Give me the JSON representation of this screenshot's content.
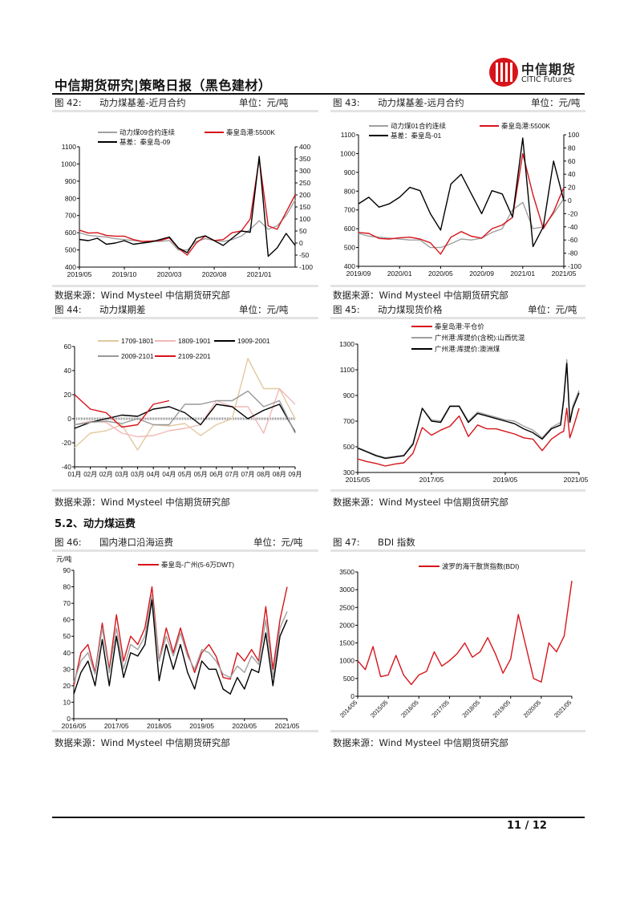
{
  "header": {
    "title": "中信期货研究|策略日报（黑色建材）",
    "logo_cn": "中信期货",
    "logo_en": "CITIC Futures"
  },
  "figures": [
    {
      "label": "图 42:",
      "title": "动力煤基差-近月合约",
      "unit": "单位：元/吨",
      "source": "数据来源：Wind Mysteel 中信期货研究部"
    },
    {
      "label": "图 43:",
      "title": "动力煤基差-远月合约",
      "unit": "单位：元/吨",
      "source": "数据来源：Wind Mysteel 中信期货研究部"
    },
    {
      "label": "图 44:",
      "title": "动力煤期差",
      "unit": "单位：元/吨",
      "source": "数据来源：Wind Mysteel 中信期货研究部"
    },
    {
      "label": "图 45:",
      "title": "动力煤现货价格",
      "unit": "单位：元/吨",
      "source": "数据来源：Wind Mysteel 中信期货研究部"
    },
    {
      "label": "图 46:",
      "title": "国内港口沿海运费",
      "unit": "单位：元/吨",
      "source": "数据来源：Wind Mysteel 中信期货研究部"
    },
    {
      "label": "图 47:",
      "title": "BDI 指数",
      "unit": "",
      "source": "数据来源：Wind Mysteel 中信期货研究部"
    }
  ],
  "section": {
    "title": "5.2、动力煤运费"
  },
  "footer": {
    "page": "11 / 12"
  },
  "colors": {
    "red": "#d7141a",
    "gray": "#a0a0a0",
    "black": "#000000",
    "tan": "#e2c9a0",
    "pink": "#f2b8b8",
    "darkgray": "#999999"
  },
  "chart_data": [
    {
      "type": "line",
      "x_type": "date",
      "xlim": [
        "2019/05",
        "2021/05"
      ],
      "xticks": [
        "2019/05",
        "2019/10",
        "2020/03",
        "2020/08",
        "2021/01"
      ],
      "ylim": [
        400,
        1100
      ],
      "yticks": [
        400,
        500,
        600,
        700,
        800,
        900,
        1000,
        1100
      ],
      "y2lim": [
        -100,
        400
      ],
      "y2ticks": [
        "-100",
        "-50",
        "0",
        "50",
        "100",
        "150",
        "200",
        "250",
        "300",
        "350",
        "400"
      ],
      "x": [
        "2019/05",
        "2019/06",
        "2019/07",
        "2019/08",
        "2019/09",
        "2019/10",
        "2019/11",
        "2019/12",
        "2020/01",
        "2020/02",
        "2020/03",
        "2020/04",
        "2020/05",
        "2020/06",
        "2020/07",
        "2020/08",
        "2020/09",
        "2020/10",
        "2020/11",
        "2020/12",
        "2021/01",
        "2021/02",
        "2021/03",
        "2021/04",
        "2021/05"
      ],
      "series": [
        {
          "name": "动力煤09合约连续",
          "color": "#a0a0a0",
          "axis": "left",
          "values": [
            600,
            585,
            580,
            575,
            565,
            560,
            555,
            548,
            548,
            550,
            555,
            500,
            500,
            550,
            565,
            555,
            550,
            560,
            580,
            620,
            670,
            620,
            640,
            700,
            790
          ]
        },
        {
          "name": "秦皇岛港:5500K",
          "color": "#d7141a",
          "axis": "left",
          "values": [
            615,
            598,
            600,
            585,
            580,
            580,
            560,
            550,
            552,
            555,
            570,
            510,
            470,
            540,
            580,
            555,
            560,
            600,
            610,
            680,
            1030,
            640,
            620,
            720,
            820
          ]
        },
        {
          "name": "基差：秦皇岛-09",
          "color": "#000000",
          "axis": "right",
          "values": [
            15,
            10,
            20,
            -5,
            0,
            10,
            -5,
            0,
            5,
            15,
            25,
            -20,
            -40,
            20,
            30,
            10,
            -10,
            20,
            50,
            45,
            360,
            -55,
            -20,
            40,
            -10
          ]
        }
      ]
    },
    {
      "type": "line",
      "x_type": "date",
      "xlim": [
        "2019/09",
        "2021/05"
      ],
      "xticks": [
        "2019/09",
        "2020/01",
        "2020/05",
        "2020/09",
        "2021/01",
        "2021/05"
      ],
      "ylim": [
        400,
        1100
      ],
      "yticks": [
        400,
        500,
        600,
        700,
        800,
        900,
        1000,
        1100
      ],
      "y2lim": [
        -100,
        100
      ],
      "y2ticks": [
        "-100",
        "-80",
        "-60",
        "-40",
        "-20",
        "0",
        "20",
        "40",
        "60",
        "80",
        "100"
      ],
      "x": [
        "2019/09",
        "2019/10",
        "2019/11",
        "2019/12",
        "2020/01",
        "2020/02",
        "2020/03",
        "2020/04",
        "2020/05",
        "2020/06",
        "2020/07",
        "2020/08",
        "2020/09",
        "2020/10",
        "2020/11",
        "2020/12",
        "2021/01",
        "2021/02",
        "2021/03",
        "2021/04",
        "2021/05"
      ],
      "series": [
        {
          "name": "动力煤01合约连续",
          "color": "#a0a0a0",
          "axis": "left",
          "values": [
            575,
            560,
            555,
            550,
            545,
            540,
            540,
            500,
            500,
            520,
            545,
            540,
            550,
            580,
            600,
            700,
            740,
            600,
            610,
            680,
            760
          ]
        },
        {
          "name": "秦皇岛港:5500K",
          "color": "#d7141a",
          "axis": "left",
          "values": [
            580,
            575,
            548,
            545,
            552,
            555,
            545,
            525,
            465,
            555,
            585,
            560,
            550,
            600,
            620,
            660,
            1000,
            780,
            600,
            690,
            820
          ]
        },
        {
          "name": "基差：秦皇岛-01",
          "color": "#000000",
          "axis": "right",
          "values": [
            -5,
            5,
            -10,
            -5,
            5,
            20,
            15,
            -20,
            -45,
            25,
            40,
            10,
            -20,
            15,
            10,
            -25,
            95,
            -70,
            -40,
            60,
            0
          ]
        }
      ]
    },
    {
      "type": "line",
      "x_type": "category",
      "xticks": [
        "01月",
        "02月",
        "02月",
        "03月",
        "03月",
        "04月",
        "04月",
        "05月",
        "05月",
        "06月",
        "07月",
        "07月",
        "08月",
        "08月",
        "09月"
      ],
      "ylim": [
        -40,
        60
      ],
      "yticks": [
        -40,
        -20,
        0,
        20,
        40,
        60
      ],
      "series": [
        {
          "name": "1709-1801",
          "color": "#e2c9a0",
          "values": [
            -24,
            -12,
            -10,
            -5,
            -26,
            -5,
            -6,
            -4,
            -14,
            -5,
            0,
            50,
            25,
            25,
            0
          ]
        },
        {
          "name": "1809-1901",
          "color": "#f2b8b8",
          "values": [
            -5,
            -2,
            -3,
            -12,
            -15,
            -14,
            -10,
            -8,
            -5,
            15,
            10,
            10,
            -12,
            25,
            12
          ]
        },
        {
          "name": "1909-2001",
          "color": "#000000",
          "values": [
            -8,
            -3,
            0,
            3,
            2,
            8,
            10,
            5,
            -5,
            12,
            10,
            0,
            7,
            12,
            -11
          ]
        },
        {
          "name": "2009-2101",
          "color": "#999999",
          "values": [
            -5,
            -3,
            -2,
            -4,
            0,
            -5,
            -5,
            12,
            12,
            15,
            15,
            23,
            10,
            15,
            -12
          ]
        },
        {
          "name": "2109-2201",
          "color": "#d7141a",
          "values": [
            20,
            8,
            5,
            -7,
            -5,
            12,
            15,
            null,
            null,
            null,
            null,
            null,
            null,
            null,
            null
          ]
        }
      ]
    },
    {
      "type": "line",
      "x_type": "date",
      "xlim": [
        "2015/05",
        "2021/05"
      ],
      "xticks": [
        "2015/05",
        "2017/05",
        "2019/05",
        "2021/05"
      ],
      "ylim": [
        300,
        1300
      ],
      "yticks": [
        300,
        500,
        700,
        900,
        1100,
        1300
      ],
      "x": [
        "2015/05",
        "2015/08",
        "2015/11",
        "2016/02",
        "2016/05",
        "2016/08",
        "2016/11",
        "2017/02",
        "2017/05",
        "2017/08",
        "2017/11",
        "2018/02",
        "2018/05",
        "2018/08",
        "2018/11",
        "2019/02",
        "2019/05",
        "2019/08",
        "2019/11",
        "2020/02",
        "2020/05",
        "2020/08",
        "2020/11",
        "2020/12",
        "2021/01",
        "2021/02",
        "2021/03",
        "2021/05"
      ],
      "series": [
        {
          "name": "秦皇岛港:平仓价",
          "color": "#d7141a",
          "values": [
            405,
            385,
            370,
            350,
            365,
            375,
            450,
            650,
            590,
            630,
            660,
            740,
            580,
            670,
            640,
            640,
            620,
            600,
            570,
            560,
            470,
            560,
            610,
            620,
            800,
            570,
            640,
            800
          ]
        },
        {
          "name": "广州港:库提价(含税):山西优混",
          "color": "#a0a0a0",
          "values": [
            495,
            465,
            435,
            415,
            425,
            435,
            530,
            800,
            710,
            700,
            820,
            820,
            700,
            770,
            750,
            730,
            710,
            700,
            660,
            630,
            570,
            650,
            690,
            880,
            1180,
            700,
            820,
            940
          ]
        },
        {
          "name": "广州港:库提价:澳洲煤",
          "color": "#000000",
          "values": [
            490,
            460,
            430,
            410,
            420,
            430,
            520,
            800,
            700,
            690,
            815,
            815,
            690,
            760,
            740,
            720,
            700,
            680,
            640,
            610,
            560,
            640,
            670,
            860,
            1150,
            690,
            800,
            920
          ]
        }
      ]
    },
    {
      "type": "line",
      "x_type": "date",
      "ylabel": "元/吨",
      "xlim": [
        "2016/05",
        "2021/05"
      ],
      "xticks": [
        "2016/05",
        "2017/05",
        "2018/05",
        "2019/05",
        "2020/05",
        "2021/05"
      ],
      "ylim": [
        0,
        90
      ],
      "yticks": [
        0,
        10,
        20,
        30,
        40,
        50,
        60,
        70,
        80,
        90
      ],
      "x": [
        "2016/05",
        "2016/07",
        "2016/09",
        "2016/11",
        "2017/01",
        "2017/03",
        "2017/05",
        "2017/07",
        "2017/09",
        "2017/11",
        "2018/01",
        "2018/03",
        "2018/05",
        "2018/07",
        "2018/09",
        "2018/11",
        "2019/01",
        "2019/03",
        "2019/05",
        "2019/07",
        "2019/09",
        "2019/11",
        "2020/01",
        "2020/03",
        "2020/05",
        "2020/07",
        "2020/09",
        "2020/11",
        "2021/01",
        "2021/03",
        "2021/05"
      ],
      "series": [
        {
          "name": "秦皇岛-广州(5-6万DWT)",
          "color": "#d7141a",
          "values": [
            20,
            40,
            45,
            28,
            58,
            30,
            63,
            35,
            50,
            45,
            55,
            80,
            35,
            55,
            40,
            55,
            40,
            28,
            40,
            45,
            38,
            25,
            24,
            40,
            35,
            42,
            35,
            68,
            30,
            60,
            80
          ]
        },
        {
          "color": "#a0a0a0",
          "values": [
            22,
            35,
            40,
            27,
            55,
            28,
            55,
            30,
            45,
            42,
            50,
            75,
            35,
            50,
            38,
            52,
            38,
            30,
            42,
            40,
            35,
            27,
            25,
            32,
            28,
            38,
            33,
            60,
            25,
            55,
            65
          ]
        },
        {
          "color": "#000000",
          "values": [
            15,
            28,
            35,
            20,
            48,
            20,
            50,
            25,
            40,
            38,
            45,
            72,
            23,
            45,
            30,
            45,
            28,
            18,
            35,
            30,
            30,
            18,
            15,
            25,
            18,
            30,
            28,
            52,
            20,
            50,
            60
          ]
        }
      ]
    },
    {
      "type": "line",
      "x_type": "date",
      "xlim": [
        "2014/05",
        "2021/05"
      ],
      "xticks": [
        "2014/05",
        "2015/05",
        "2016/05",
        "2017/05",
        "2018/05",
        "2019/05",
        "2020/05",
        "2021/05"
      ],
      "ylim": [
        0,
        3500
      ],
      "yticks": [
        0,
        500,
        1000,
        1500,
        2000,
        2500,
        3000,
        3500
      ],
      "x": [
        "2014/05",
        "2014/08",
        "2014/11",
        "2015/02",
        "2015/05",
        "2015/08",
        "2015/11",
        "2016/02",
        "2016/05",
        "2016/08",
        "2016/11",
        "2017/02",
        "2017/05",
        "2017/08",
        "2017/11",
        "2018/02",
        "2018/05",
        "2018/08",
        "2018/11",
        "2019/02",
        "2019/05",
        "2019/08",
        "2019/11",
        "2020/02",
        "2020/05",
        "2020/08",
        "2020/11",
        "2021/02",
        "2021/05"
      ],
      "series": [
        {
          "name": "波罗的海干散货指数(BDI)",
          "color": "#d7141a",
          "values": [
            1000,
            750,
            1400,
            550,
            600,
            1150,
            600,
            330,
            600,
            700,
            1250,
            850,
            1000,
            1200,
            1500,
            1100,
            1250,
            1650,
            1200,
            650,
            1050,
            2300,
            1400,
            500,
            400,
            1500,
            1250,
            1700,
            3250
          ]
        }
      ]
    }
  ]
}
